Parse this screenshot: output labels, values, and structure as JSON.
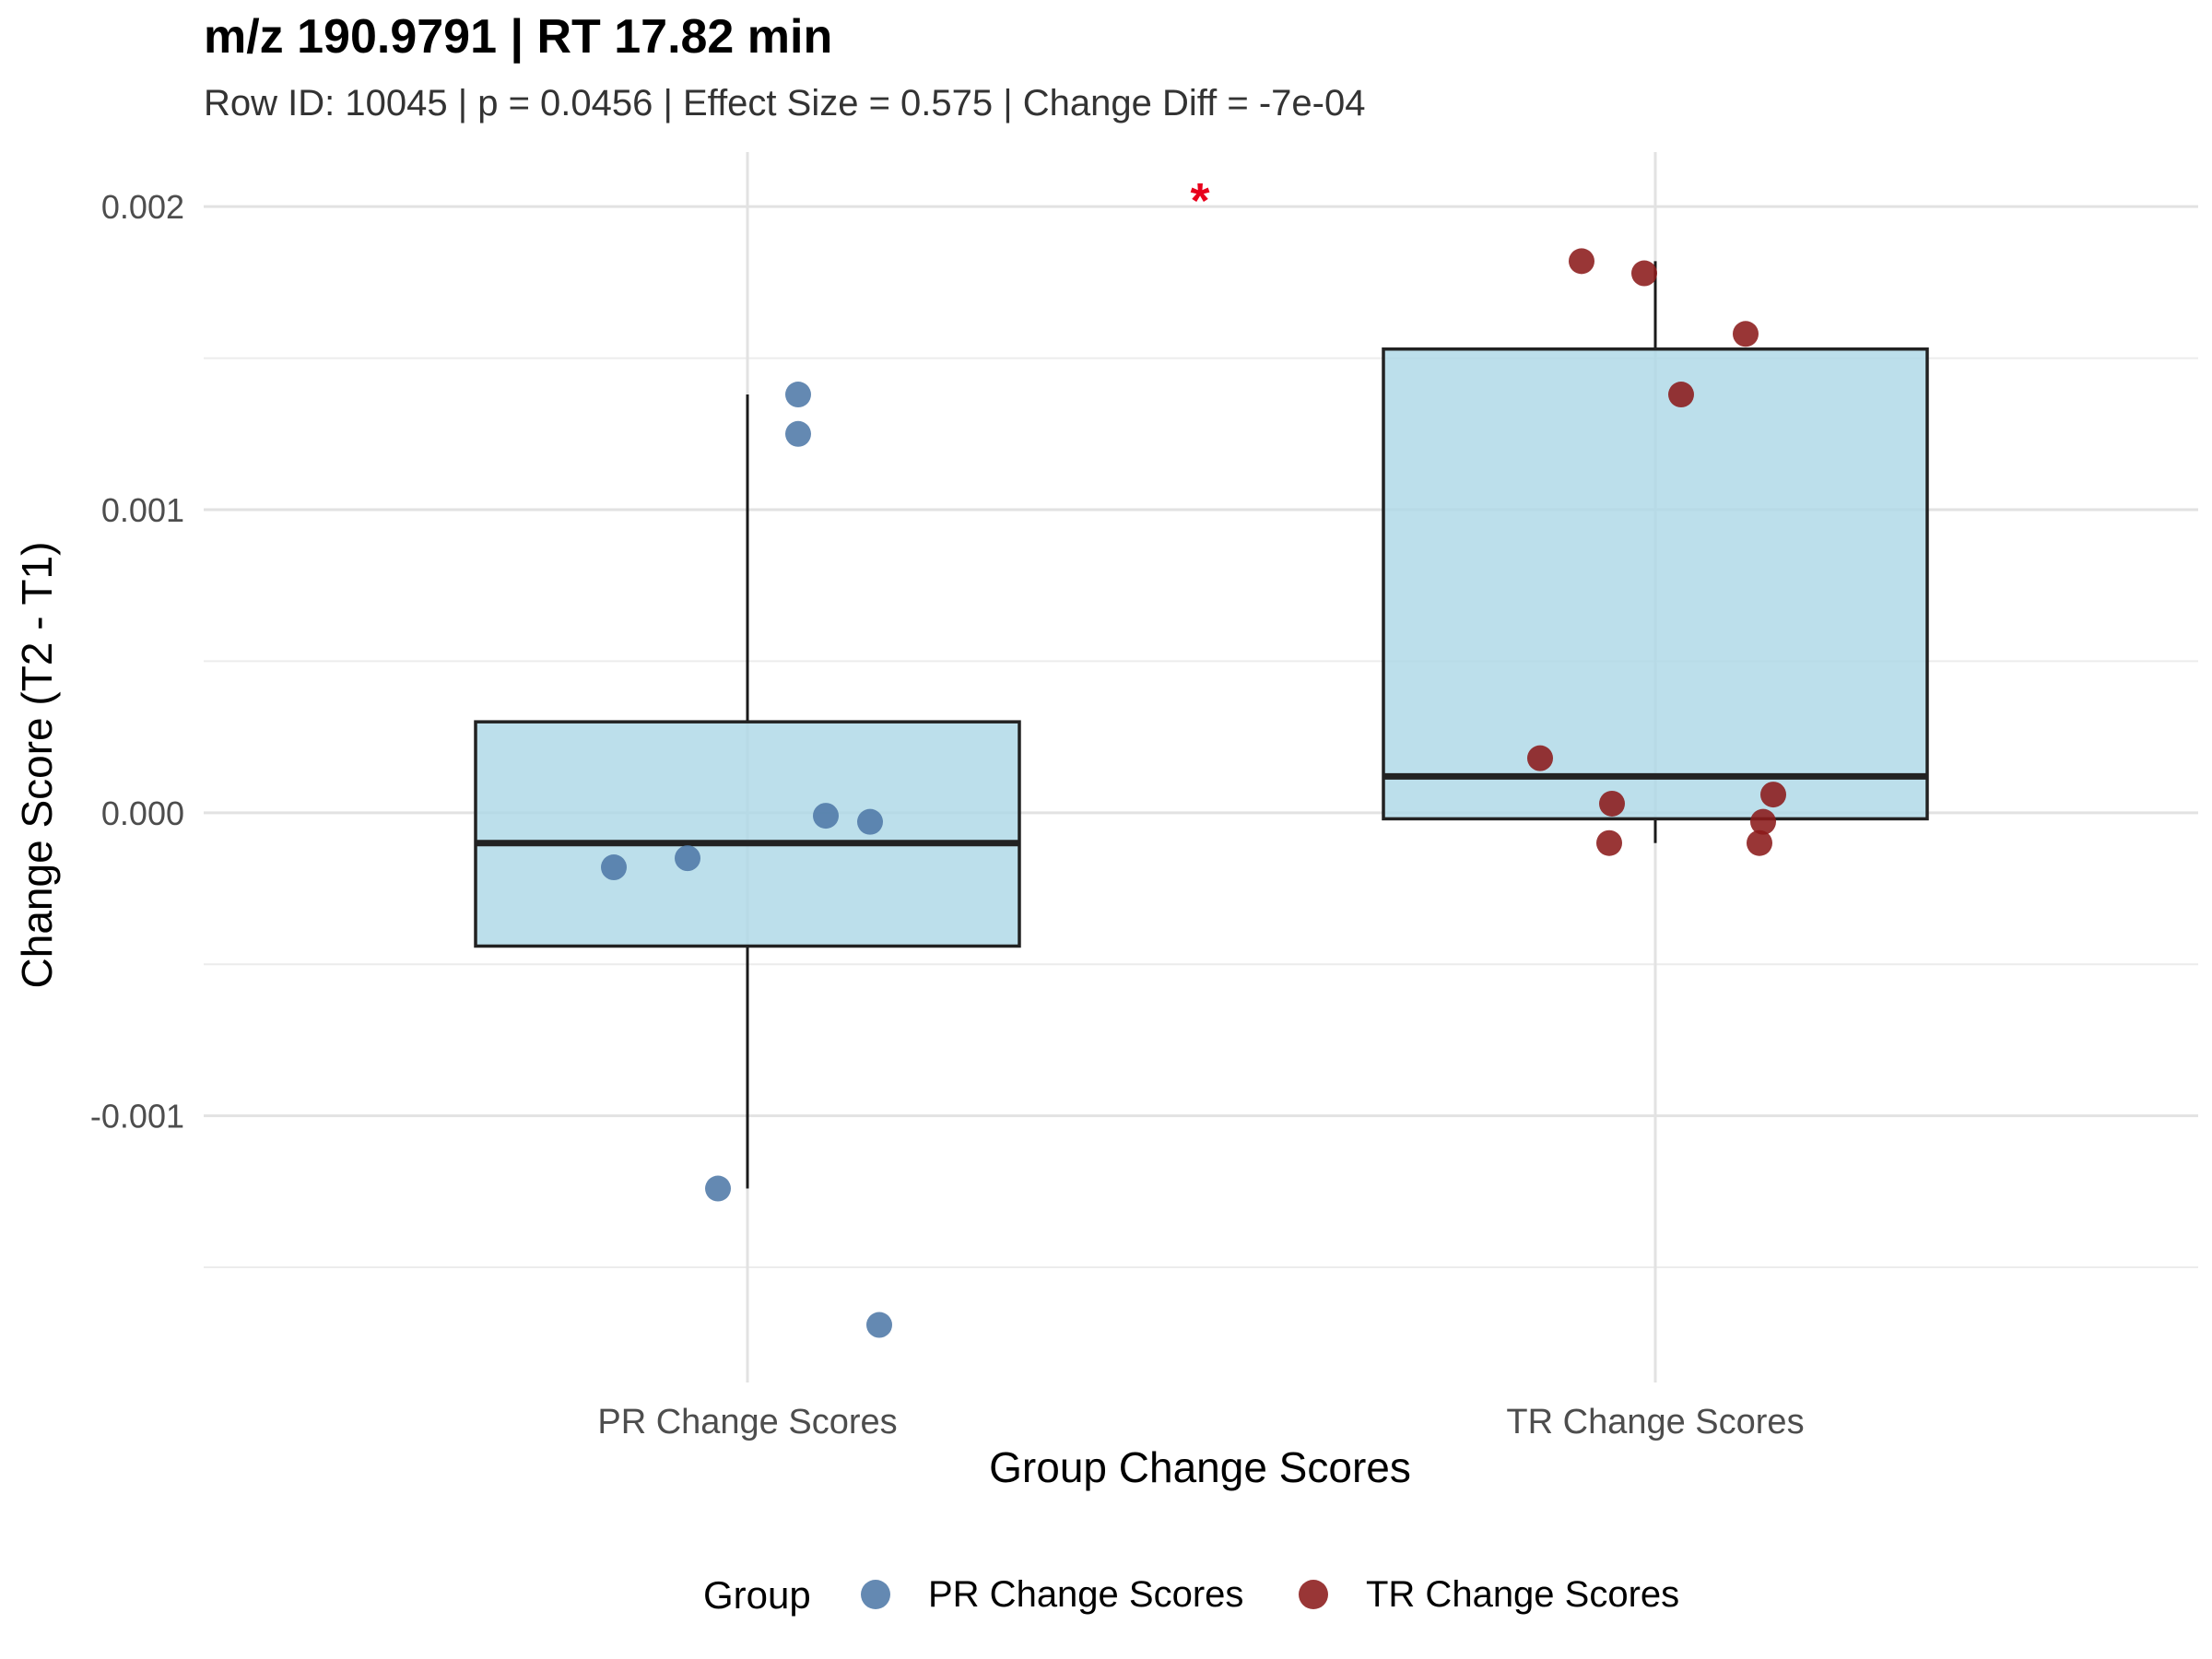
{
  "chart_data": {
    "type": "box",
    "title": "m/z 190.9791 | RT 17.82 min",
    "subtitle": "Row ID: 10045 | p = 0.0456 | Effect Size = 0.575 | Change Diff = -7e-04",
    "xlabel": "Group Change Scores",
    "ylabel": "Change Score (T2 - T1)",
    "categories": [
      "PR Change Scores",
      "TR Change Scores"
    ],
    "ylim": [
      -0.00188,
      0.00218
    ],
    "yticks": [
      -0.001,
      0.0,
      0.001,
      0.002
    ],
    "ytick_labels": [
      "-0.001",
      "0.000",
      "0.001",
      "0.002"
    ],
    "grid": true,
    "significance_marker": "*",
    "boxes": [
      {
        "category": "PR Change Scores",
        "whisker_low": -0.00124,
        "q1": -0.00044,
        "median": -0.0001,
        "q3": 0.0003,
        "whisker_high": 0.00138
      },
      {
        "category": "TR Change Scores",
        "whisker_low": -0.0001,
        "q1": -2e-05,
        "median": 0.00012,
        "q3": 0.00153,
        "whisker_high": 0.00182
      }
    ],
    "series": [
      {
        "name": "PR Change Scores",
        "color": "#4e79a7",
        "points": [
          {
            "x": 0.055,
            "y": 0.00138
          },
          {
            "x": 0.055,
            "y": 0.00125
          },
          {
            "x": 0.085,
            "y": -1e-05
          },
          {
            "x": 0.133,
            "y": -3e-05
          },
          {
            "x": -0.145,
            "y": -0.00018
          },
          {
            "x": -0.065,
            "y": -0.00015
          },
          {
            "x": -0.032,
            "y": -0.00124
          },
          {
            "x": 0.143,
            "y": -0.00169
          }
        ]
      },
      {
        "name": "TR Change Scores",
        "color": "#8b1a1a",
        "points": [
          {
            "x": -0.08,
            "y": 0.00182
          },
          {
            "x": -0.012,
            "y": 0.00178
          },
          {
            "x": 0.098,
            "y": 0.00158
          },
          {
            "x": 0.028,
            "y": 0.00138
          },
          {
            "x": -0.125,
            "y": 0.00018
          },
          {
            "x": -0.047,
            "y": 3e-05
          },
          {
            "x": 0.128,
            "y": 6e-05
          },
          {
            "x": 0.117,
            "y": -3e-05
          },
          {
            "x": -0.05,
            "y": -0.0001
          },
          {
            "x": 0.113,
            "y": -0.0001
          }
        ]
      }
    ],
    "box_fill": "#add8e6",
    "legend": {
      "title": "Group",
      "position": "bottom"
    }
  }
}
